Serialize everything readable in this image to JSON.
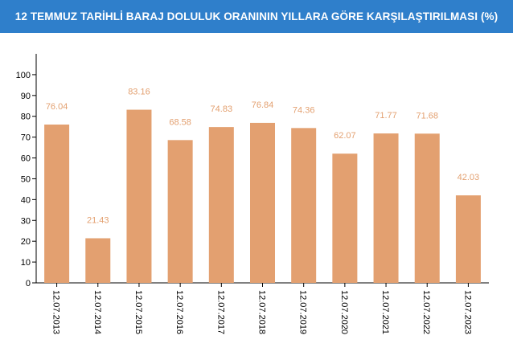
{
  "header": {
    "title": "12 TEMMUZ TARİHLİ BARAJ DOLULUK ORANININ YILLARA GÖRE KARŞILAŞTIRILMASI (%)"
  },
  "colors": {
    "header_bg": "#2f7fcb",
    "bar": "#e3a070",
    "data_label": "#e3a070",
    "axis": "#000000"
  },
  "chart_data": {
    "type": "bar",
    "title": "12 TEMMUZ TARİHLİ BARAJ DOLULUK ORANININ YILLARA GÖRE KARŞILAŞTIRILMASI (%)",
    "xlabel": "",
    "ylabel": "",
    "ylim": [
      0,
      110
    ],
    "yticks": [
      0,
      10,
      20,
      30,
      40,
      50,
      60,
      70,
      80,
      90,
      100
    ],
    "grid": false,
    "legend": "none",
    "categories": [
      "12.07.2013",
      "12.07.2014",
      "12.07.2015",
      "12.07.2016",
      "12.07.2017",
      "12.07.2018",
      "12.07.2019",
      "12.07.2020",
      "12.07.2021",
      "12.07.2022",
      "12.07.2023"
    ],
    "values": [
      76.04,
      21.43,
      83.16,
      68.58,
      74.83,
      76.84,
      74.36,
      62.07,
      71.77,
      71.68,
      42.03
    ],
    "value_labels": [
      "76.04",
      "21.43",
      "83.16",
      "68.58",
      "74.83",
      "76.84",
      "74.36",
      "62.07",
      "71.77",
      "71.68",
      "42.03"
    ]
  }
}
